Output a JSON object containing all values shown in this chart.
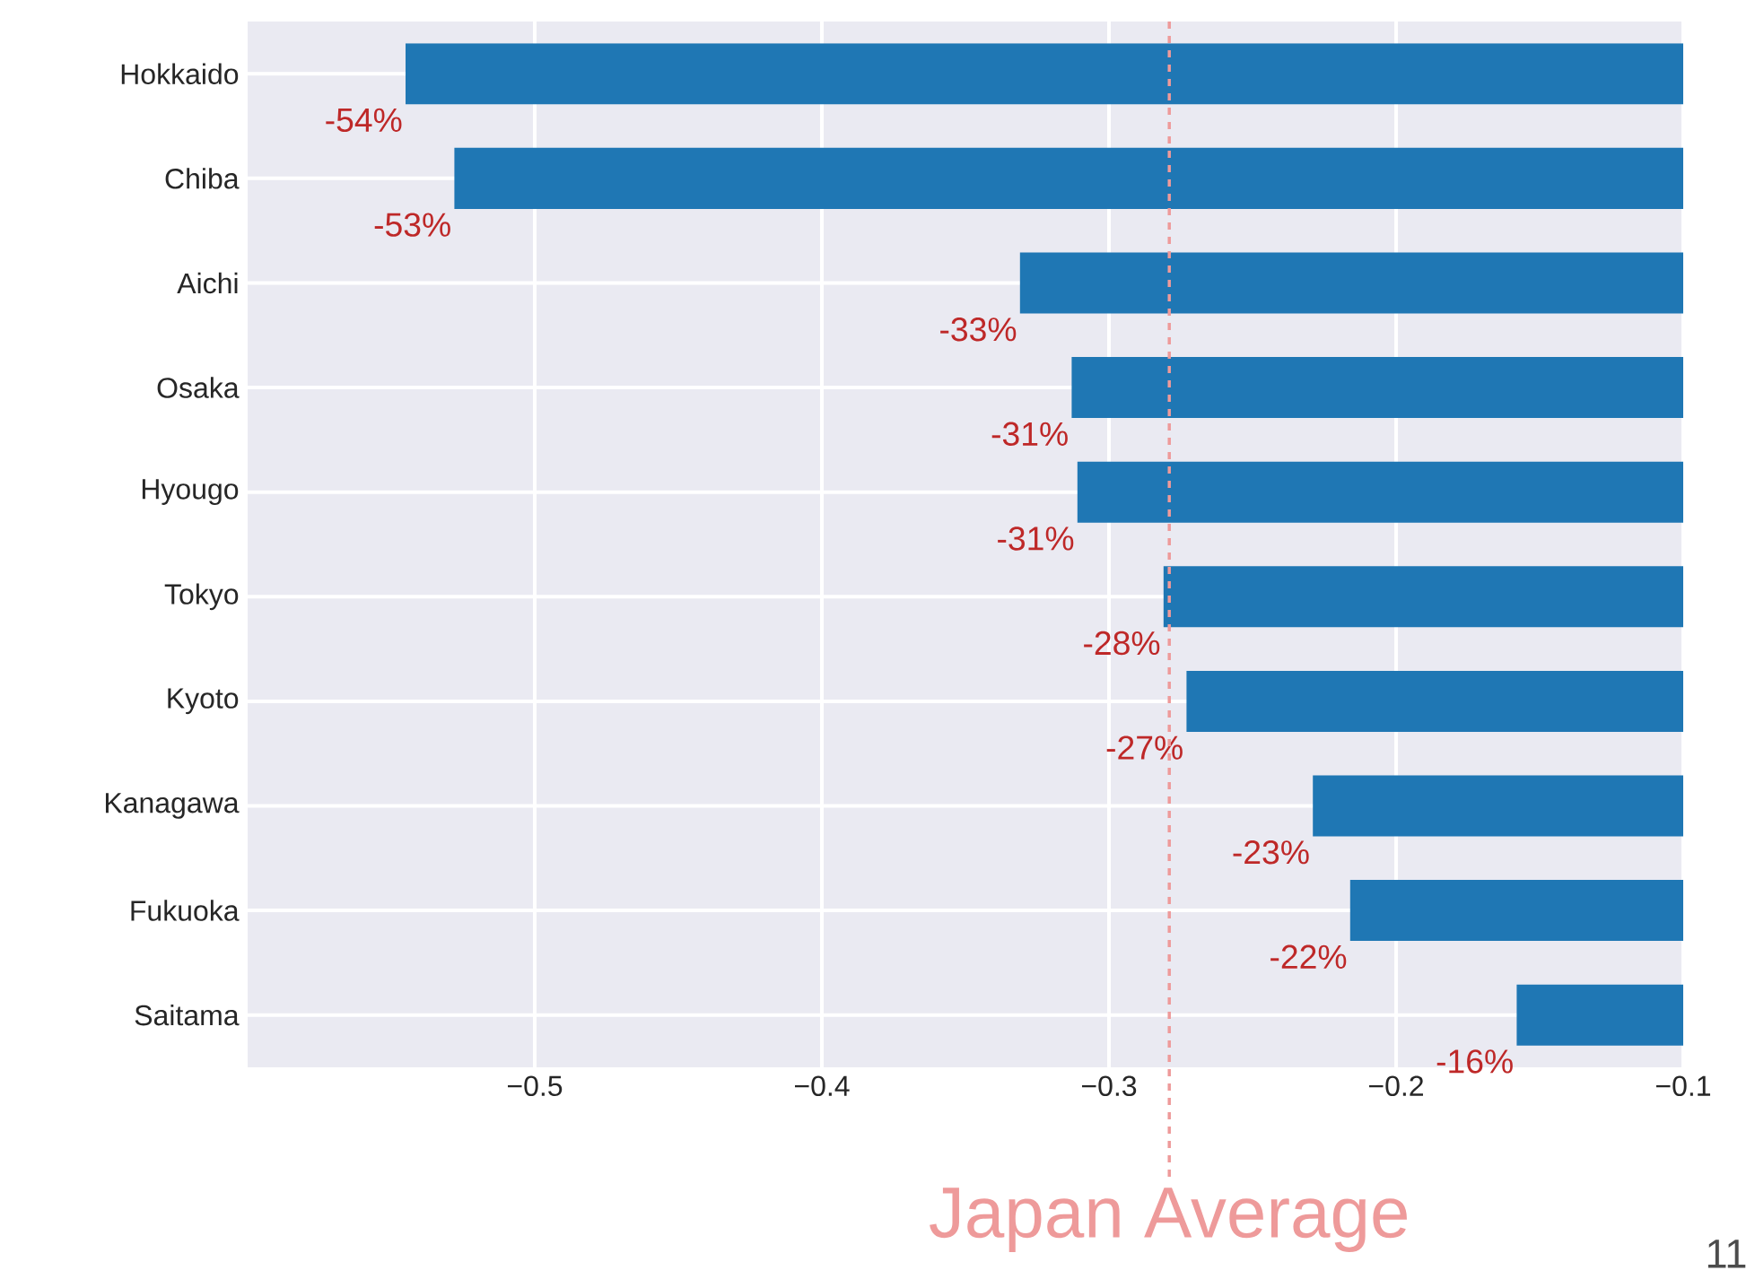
{
  "chart_data": {
    "type": "bar",
    "orientation": "horizontal",
    "categories": [
      "Hokkaido",
      "Chiba",
      "Aichi",
      "Osaka",
      "Hyougo",
      "Tokyo",
      "Kyoto",
      "Kanagawa",
      "Fukuoka",
      "Saitama"
    ],
    "values": [
      -0.545,
      -0.528,
      -0.331,
      -0.313,
      -0.311,
      -0.281,
      -0.273,
      -0.229,
      -0.216,
      -0.158
    ],
    "value_labels": [
      "-54%",
      "-53%",
      "-33%",
      "-31%",
      "-31%",
      "-28%",
      "-27%",
      "-23%",
      "-22%",
      "-16%"
    ],
    "color": "#1f77b4",
    "xlim": [
      -0.6,
      -0.1
    ],
    "xticks": [
      {
        "value": -0.5,
        "label": "−0.5"
      },
      {
        "value": -0.4,
        "label": "−0.4"
      },
      {
        "value": -0.3,
        "label": "−0.3"
      },
      {
        "value": -0.2,
        "label": "−0.2"
      },
      {
        "value": -0.1,
        "label": "−0.1"
      }
    ],
    "grid": true,
    "ref_lines": [
      {
        "axis": "x",
        "value": -0.279,
        "label": "Japan Average",
        "color": "#ee9a9a",
        "line_style": "dashed"
      }
    ],
    "annotations": [
      "11"
    ]
  }
}
